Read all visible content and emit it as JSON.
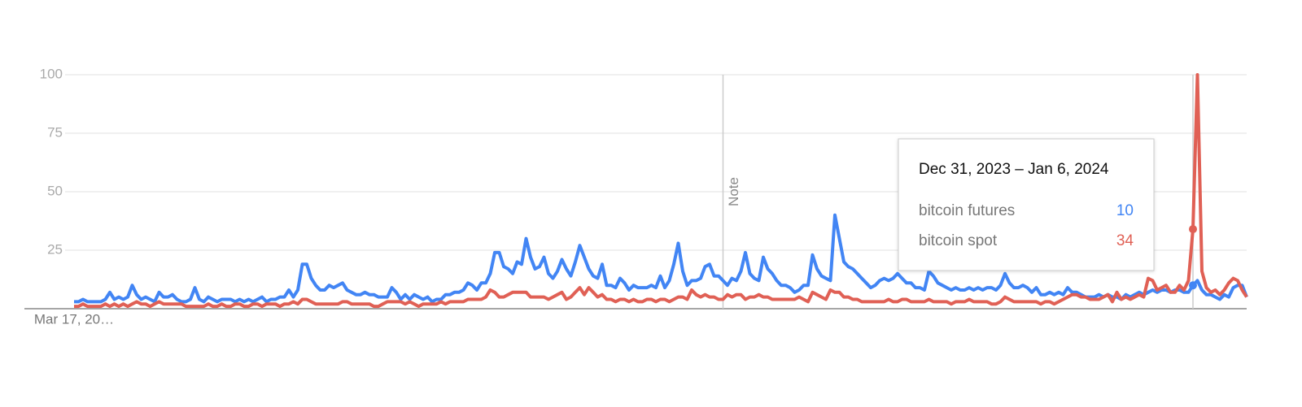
{
  "chart_data": {
    "type": "line",
    "categories": [
      "Mar 17, 20…",
      null,
      null,
      null,
      null,
      null,
      null,
      null,
      null,
      null,
      null,
      null,
      null,
      null,
      null,
      null,
      null,
      null,
      null,
      null,
      null,
      null,
      null,
      null,
      null,
      null,
      null,
      null,
      null,
      null,
      null,
      null,
      null,
      null,
      null,
      null,
      null,
      null,
      null,
      null,
      null,
      null,
      null,
      null,
      null,
      null,
      null,
      null,
      null,
      null,
      null,
      null,
      null,
      null,
      null,
      null,
      null,
      null,
      null,
      null,
      null,
      null,
      null,
      null,
      null,
      null,
      null,
      null,
      null,
      null,
      null,
      null,
      null,
      null,
      null,
      null,
      null,
      null,
      null,
      null,
      null,
      null,
      null,
      null,
      null,
      null,
      null,
      null,
      null,
      null,
      null,
      null,
      null,
      null,
      null,
      null,
      null,
      null,
      null,
      null,
      null,
      null,
      null,
      null,
      null,
      null,
      null,
      null,
      null,
      null,
      null,
      null,
      null,
      null,
      null,
      null,
      null,
      null,
      null,
      null,
      null,
      null,
      null,
      null,
      null,
      null,
      null,
      null,
      null,
      null,
      null,
      null,
      null,
      null,
      null,
      null,
      null,
      null,
      null,
      null,
      null,
      null,
      null,
      null,
      null,
      null,
      null,
      null,
      null,
      null,
      null,
      null,
      null,
      null,
      null,
      null,
      null,
      null,
      null,
      null,
      null,
      null,
      null,
      null,
      null,
      null,
      null,
      null,
      null,
      null,
      null,
      null,
      null,
      null,
      null,
      null,
      null,
      null,
      null,
      null,
      null,
      null,
      null,
      null,
      null,
      null,
      null,
      null,
      null,
      null,
      null,
      null,
      null,
      null,
      null,
      null,
      null,
      null,
      null,
      null,
      null,
      null,
      null,
      null,
      null,
      null,
      null,
      null,
      null,
      null,
      null,
      null,
      null,
      null,
      null,
      null,
      null,
      null,
      null,
      null,
      null,
      null,
      null,
      null,
      null,
      null,
      null,
      null,
      null,
      null,
      null,
      null,
      null,
      null,
      null,
      null,
      null,
      null,
      null,
      null,
      null,
      null,
      null,
      null,
      null,
      null,
      null,
      null,
      null,
      null,
      null,
      null,
      null,
      null,
      null,
      null,
      null,
      null,
      null,
      null,
      null,
      null,
      null
    ],
    "series": [
      {
        "name": "bitcoin futures",
        "color": "#4285f4",
        "values": [
          3,
          3,
          4,
          3,
          3,
          3,
          3,
          4,
          7,
          4,
          5,
          4,
          5,
          10,
          6,
          4,
          5,
          4,
          3,
          7,
          5,
          5,
          6,
          4,
          3,
          3,
          4,
          9,
          4,
          3,
          5,
          4,
          3,
          4,
          4,
          4,
          3,
          4,
          3,
          4,
          3,
          4,
          5,
          3,
          4,
          4,
          5,
          5,
          8,
          5,
          8,
          19,
          19,
          13,
          10,
          8,
          8,
          10,
          9,
          10,
          11,
          8,
          7,
          6,
          6,
          7,
          6,
          6,
          5,
          5,
          5,
          9,
          7,
          4,
          6,
          4,
          6,
          5,
          4,
          5,
          3,
          4,
          4,
          6,
          6,
          7,
          7,
          8,
          11,
          10,
          8,
          11,
          11,
          15,
          24,
          24,
          18,
          17,
          15,
          20,
          19,
          30,
          22,
          17,
          18,
          22,
          15,
          13,
          16,
          21,
          17,
          14,
          20,
          27,
          22,
          17,
          14,
          13,
          19,
          10,
          10,
          9,
          13,
          11,
          8,
          10,
          9,
          9,
          9,
          10,
          9,
          14,
          9,
          12,
          19,
          28,
          16,
          10,
          12,
          12,
          13,
          18,
          19,
          14,
          14,
          12,
          10,
          13,
          12,
          16,
          24,
          15,
          13,
          12,
          22,
          17,
          15,
          12,
          10,
          10,
          9,
          7,
          8,
          10,
          10,
          23,
          17,
          14,
          13,
          12,
          40,
          30,
          20,
          18,
          17,
          15,
          13,
          11,
          9,
          10,
          12,
          13,
          12,
          13,
          15,
          13,
          11,
          11,
          9,
          9,
          8,
          16,
          14,
          11,
          10,
          9,
          8,
          9,
          8,
          8,
          9,
          8,
          9,
          8,
          9,
          9,
          8,
          10,
          15,
          11,
          9,
          9,
          10,
          9,
          7,
          9,
          6,
          6,
          7,
          6,
          7,
          6,
          9,
          7,
          7,
          6,
          5,
          5,
          5,
          6,
          5,
          6,
          5,
          5,
          4,
          6,
          5,
          6,
          7,
          6,
          7,
          8,
          7,
          8,
          8,
          7,
          8,
          8,
          7,
          7,
          10,
          12,
          8,
          6,
          6,
          5,
          4,
          6,
          5,
          9,
          10,
          10,
          5
        ]
      },
      {
        "name": "bitcoin spot",
        "color": "#e06055",
        "values": [
          1,
          1,
          2,
          1,
          1,
          1,
          1,
          2,
          1,
          2,
          1,
          2,
          1,
          2,
          3,
          2,
          2,
          1,
          2,
          3,
          2,
          2,
          2,
          2,
          2,
          1,
          1,
          1,
          1,
          1,
          2,
          1,
          1,
          2,
          1,
          1,
          2,
          2,
          1,
          1,
          2,
          2,
          1,
          2,
          2,
          2,
          1,
          2,
          2,
          3,
          2,
          4,
          4,
          3,
          2,
          2,
          2,
          2,
          2,
          2,
          3,
          3,
          2,
          2,
          2,
          2,
          2,
          1,
          1,
          2,
          3,
          3,
          3,
          3,
          2,
          3,
          2,
          1,
          2,
          2,
          2,
          2,
          3,
          2,
          3,
          3,
          3,
          3,
          4,
          4,
          4,
          4,
          5,
          8,
          7,
          5,
          5,
          6,
          7,
          7,
          7,
          7,
          5,
          5,
          5,
          5,
          4,
          5,
          6,
          7,
          4,
          5,
          7,
          9,
          6,
          9,
          7,
          5,
          6,
          4,
          4,
          3,
          4,
          4,
          3,
          4,
          3,
          3,
          4,
          4,
          3,
          4,
          4,
          3,
          4,
          5,
          5,
          4,
          8,
          6,
          5,
          6,
          5,
          5,
          4,
          4,
          6,
          5,
          6,
          6,
          4,
          5,
          5,
          6,
          5,
          5,
          4,
          4,
          4,
          4,
          4,
          4,
          5,
          4,
          3,
          7,
          6,
          5,
          4,
          8,
          7,
          7,
          5,
          5,
          4,
          4,
          3,
          3,
          3,
          3,
          3,
          3,
          4,
          3,
          3,
          4,
          4,
          3,
          3,
          3,
          3,
          4,
          3,
          3,
          3,
          3,
          2,
          3,
          3,
          3,
          4,
          3,
          3,
          3,
          3,
          2,
          2,
          3,
          5,
          4,
          3,
          3,
          3,
          3,
          3,
          3,
          2,
          3,
          3,
          2,
          3,
          4,
          5,
          6,
          6,
          5,
          5,
          4,
          4,
          4,
          5,
          6,
          3,
          7,
          4,
          5,
          4,
          5,
          6,
          5,
          13,
          12,
          8,
          9,
          10,
          7,
          7,
          10,
          8,
          12,
          34,
          100,
          16,
          9,
          7,
          8,
          6,
          8,
          11,
          13,
          12,
          8,
          5
        ]
      }
    ],
    "ylim": [
      0,
      100
    ],
    "yticks": [
      25,
      50,
      75,
      100
    ],
    "grid": true,
    "annotations": [
      {
        "label": "Note"
      }
    ],
    "tooltip_title": "Dec 31, 2023 – Jan 6, 2024"
  }
}
